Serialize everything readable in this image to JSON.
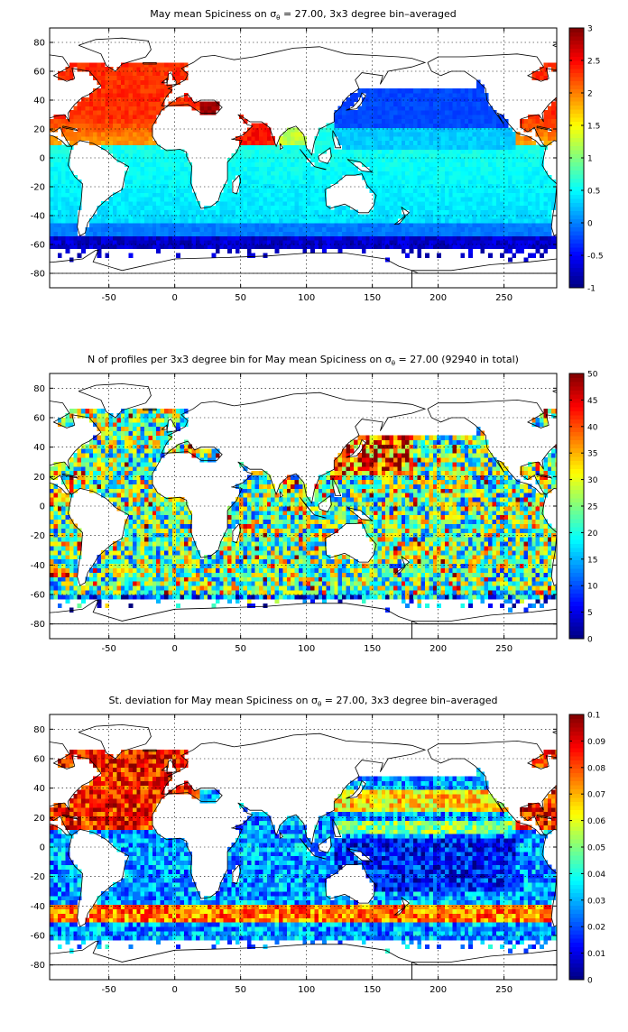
{
  "chart_data": [
    {
      "type": "heatmap",
      "title_pre": "May mean Spiciness on ",
      "title_sym": "σ",
      "title_sub": "θ",
      "title_post": " = 27.00, 3x3 degree bin–averaged",
      "xlim": [
        -95,
        290
      ],
      "ylim": [
        -90,
        90
      ],
      "xticks": [
        -50,
        0,
        50,
        100,
        150,
        200,
        250
      ],
      "yticks": [
        -80,
        -60,
        -40,
        -20,
        0,
        20,
        40,
        60,
        80
      ],
      "grid": true,
      "colormap": "jet",
      "clim": [
        -1,
        3
      ],
      "cbar_ticks": [
        -1,
        -0.5,
        0,
        0.5,
        1,
        1.5,
        2,
        2.5,
        3
      ],
      "field": "spiciness"
    },
    {
      "type": "heatmap",
      "title_pre": "N of profiles per 3x3 degree bin for May mean Spiciness on ",
      "title_sym": "σ",
      "title_sub": "θ",
      "title_post": " = 27.00 (92940 in total)",
      "xlim": [
        -95,
        290
      ],
      "ylim": [
        -90,
        90
      ],
      "xticks": [
        -50,
        0,
        50,
        100,
        150,
        200,
        250
      ],
      "yticks": [
        -80,
        -60,
        -40,
        -20,
        0,
        20,
        40,
        60,
        80
      ],
      "grid": true,
      "colormap": "jet",
      "clim": [
        0,
        50
      ],
      "cbar_ticks": [
        0,
        5,
        10,
        15,
        20,
        25,
        30,
        35,
        40,
        45,
        50
      ],
      "field": "count"
    },
    {
      "type": "heatmap",
      "title_pre": "St. deviation for May mean Spiciness on ",
      "title_sym": "σ",
      "title_sub": "θ",
      "title_post": " = 27.00, 3x3 degree bin–averaged",
      "xlim": [
        -95,
        290
      ],
      "ylim": [
        -90,
        90
      ],
      "xticks": [
        -50,
        0,
        50,
        100,
        150,
        200,
        250
      ],
      "yticks": [
        -80,
        -60,
        -40,
        -20,
        0,
        20,
        40,
        60,
        80
      ],
      "grid": true,
      "colormap": "jet",
      "clim": [
        0,
        0.1
      ],
      "cbar_ticks": [
        0,
        0.01,
        0.02,
        0.03,
        0.04,
        0.05,
        0.06,
        0.07,
        0.08,
        0.09,
        0.1
      ],
      "field": "stdev"
    }
  ]
}
